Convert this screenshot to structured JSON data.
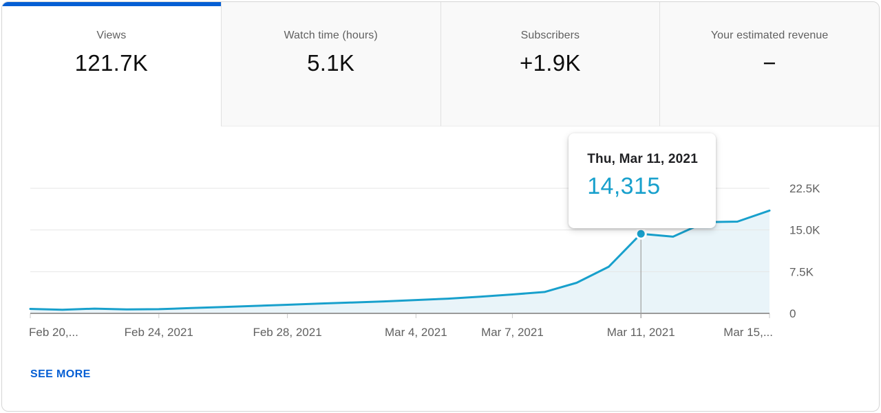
{
  "tabs": [
    {
      "label": "Views",
      "value": "121.7K",
      "selected": true
    },
    {
      "label": "Watch time (hours)",
      "value": "5.1K",
      "selected": false
    },
    {
      "label": "Subscribers",
      "value": "+1.9K",
      "selected": false
    },
    {
      "label": "Your estimated revenue",
      "value": "−",
      "selected": false
    }
  ],
  "tooltip": {
    "date": "Thu, Mar 11, 2021",
    "value": "14,315"
  },
  "footer": {
    "see_more_label": "SEE MORE"
  },
  "colors": {
    "accent_blue": "#065fd4",
    "line": "#18a0cc",
    "area_fill": "#e9f4f9",
    "gridline": "#e6e6e6",
    "axis": "#9a9a9a",
    "tick": "#c9c9c9",
    "tick_label": "#606060",
    "hover_line": "#9e9e9e",
    "tooltip_value": "#18a0cc"
  },
  "chart_data": {
    "type": "area",
    "title": "Views per day",
    "xlabel": "",
    "ylabel": "Views",
    "grid": true,
    "legend": "none",
    "ylim": [
      0,
      24000
    ],
    "x": [
      "Feb 20, 2021",
      "Feb 21, 2021",
      "Feb 22, 2021",
      "Feb 23, 2021",
      "Feb 24, 2021",
      "Feb 25, 2021",
      "Feb 26, 2021",
      "Feb 27, 2021",
      "Feb 28, 2021",
      "Mar 1, 2021",
      "Mar 2, 2021",
      "Mar 3, 2021",
      "Mar 4, 2021",
      "Mar 5, 2021",
      "Mar 6, 2021",
      "Mar 7, 2021",
      "Mar 8, 2021",
      "Mar 9, 2021",
      "Mar 10, 2021",
      "Mar 11, 2021",
      "Mar 12, 2021",
      "Mar 13, 2021",
      "Mar 14, 2021",
      "Mar 15, 2021"
    ],
    "values": [
      800,
      650,
      850,
      700,
      750,
      950,
      1150,
      1350,
      1550,
      1750,
      1950,
      2150,
      2400,
      2650,
      3000,
      3400,
      3850,
      5500,
      8400,
      14315,
      13800,
      16400,
      16500,
      18500
    ],
    "x_ticks": [
      {
        "label": "Feb 20,...",
        "day": 0
      },
      {
        "label": "Feb 24, 2021",
        "day": 4
      },
      {
        "label": "Feb 28, 2021",
        "day": 8
      },
      {
        "label": "Mar 4, 2021",
        "day": 12
      },
      {
        "label": "Mar 7, 2021",
        "day": 15
      },
      {
        "label": "Mar 11, 2021",
        "day": 19
      },
      {
        "label": "Mar 15,...",
        "day": 23
      }
    ],
    "y_ticks": [
      {
        "label": "0",
        "value": 0
      },
      {
        "label": "7.5K",
        "value": 7500
      },
      {
        "label": "15.0K",
        "value": 15000
      },
      {
        "label": "22.5K",
        "value": 22500
      }
    ],
    "highlight": {
      "day": 19,
      "value": 14315,
      "date_label": "Thu, Mar 11, 2021",
      "value_label": "14,315"
    }
  }
}
